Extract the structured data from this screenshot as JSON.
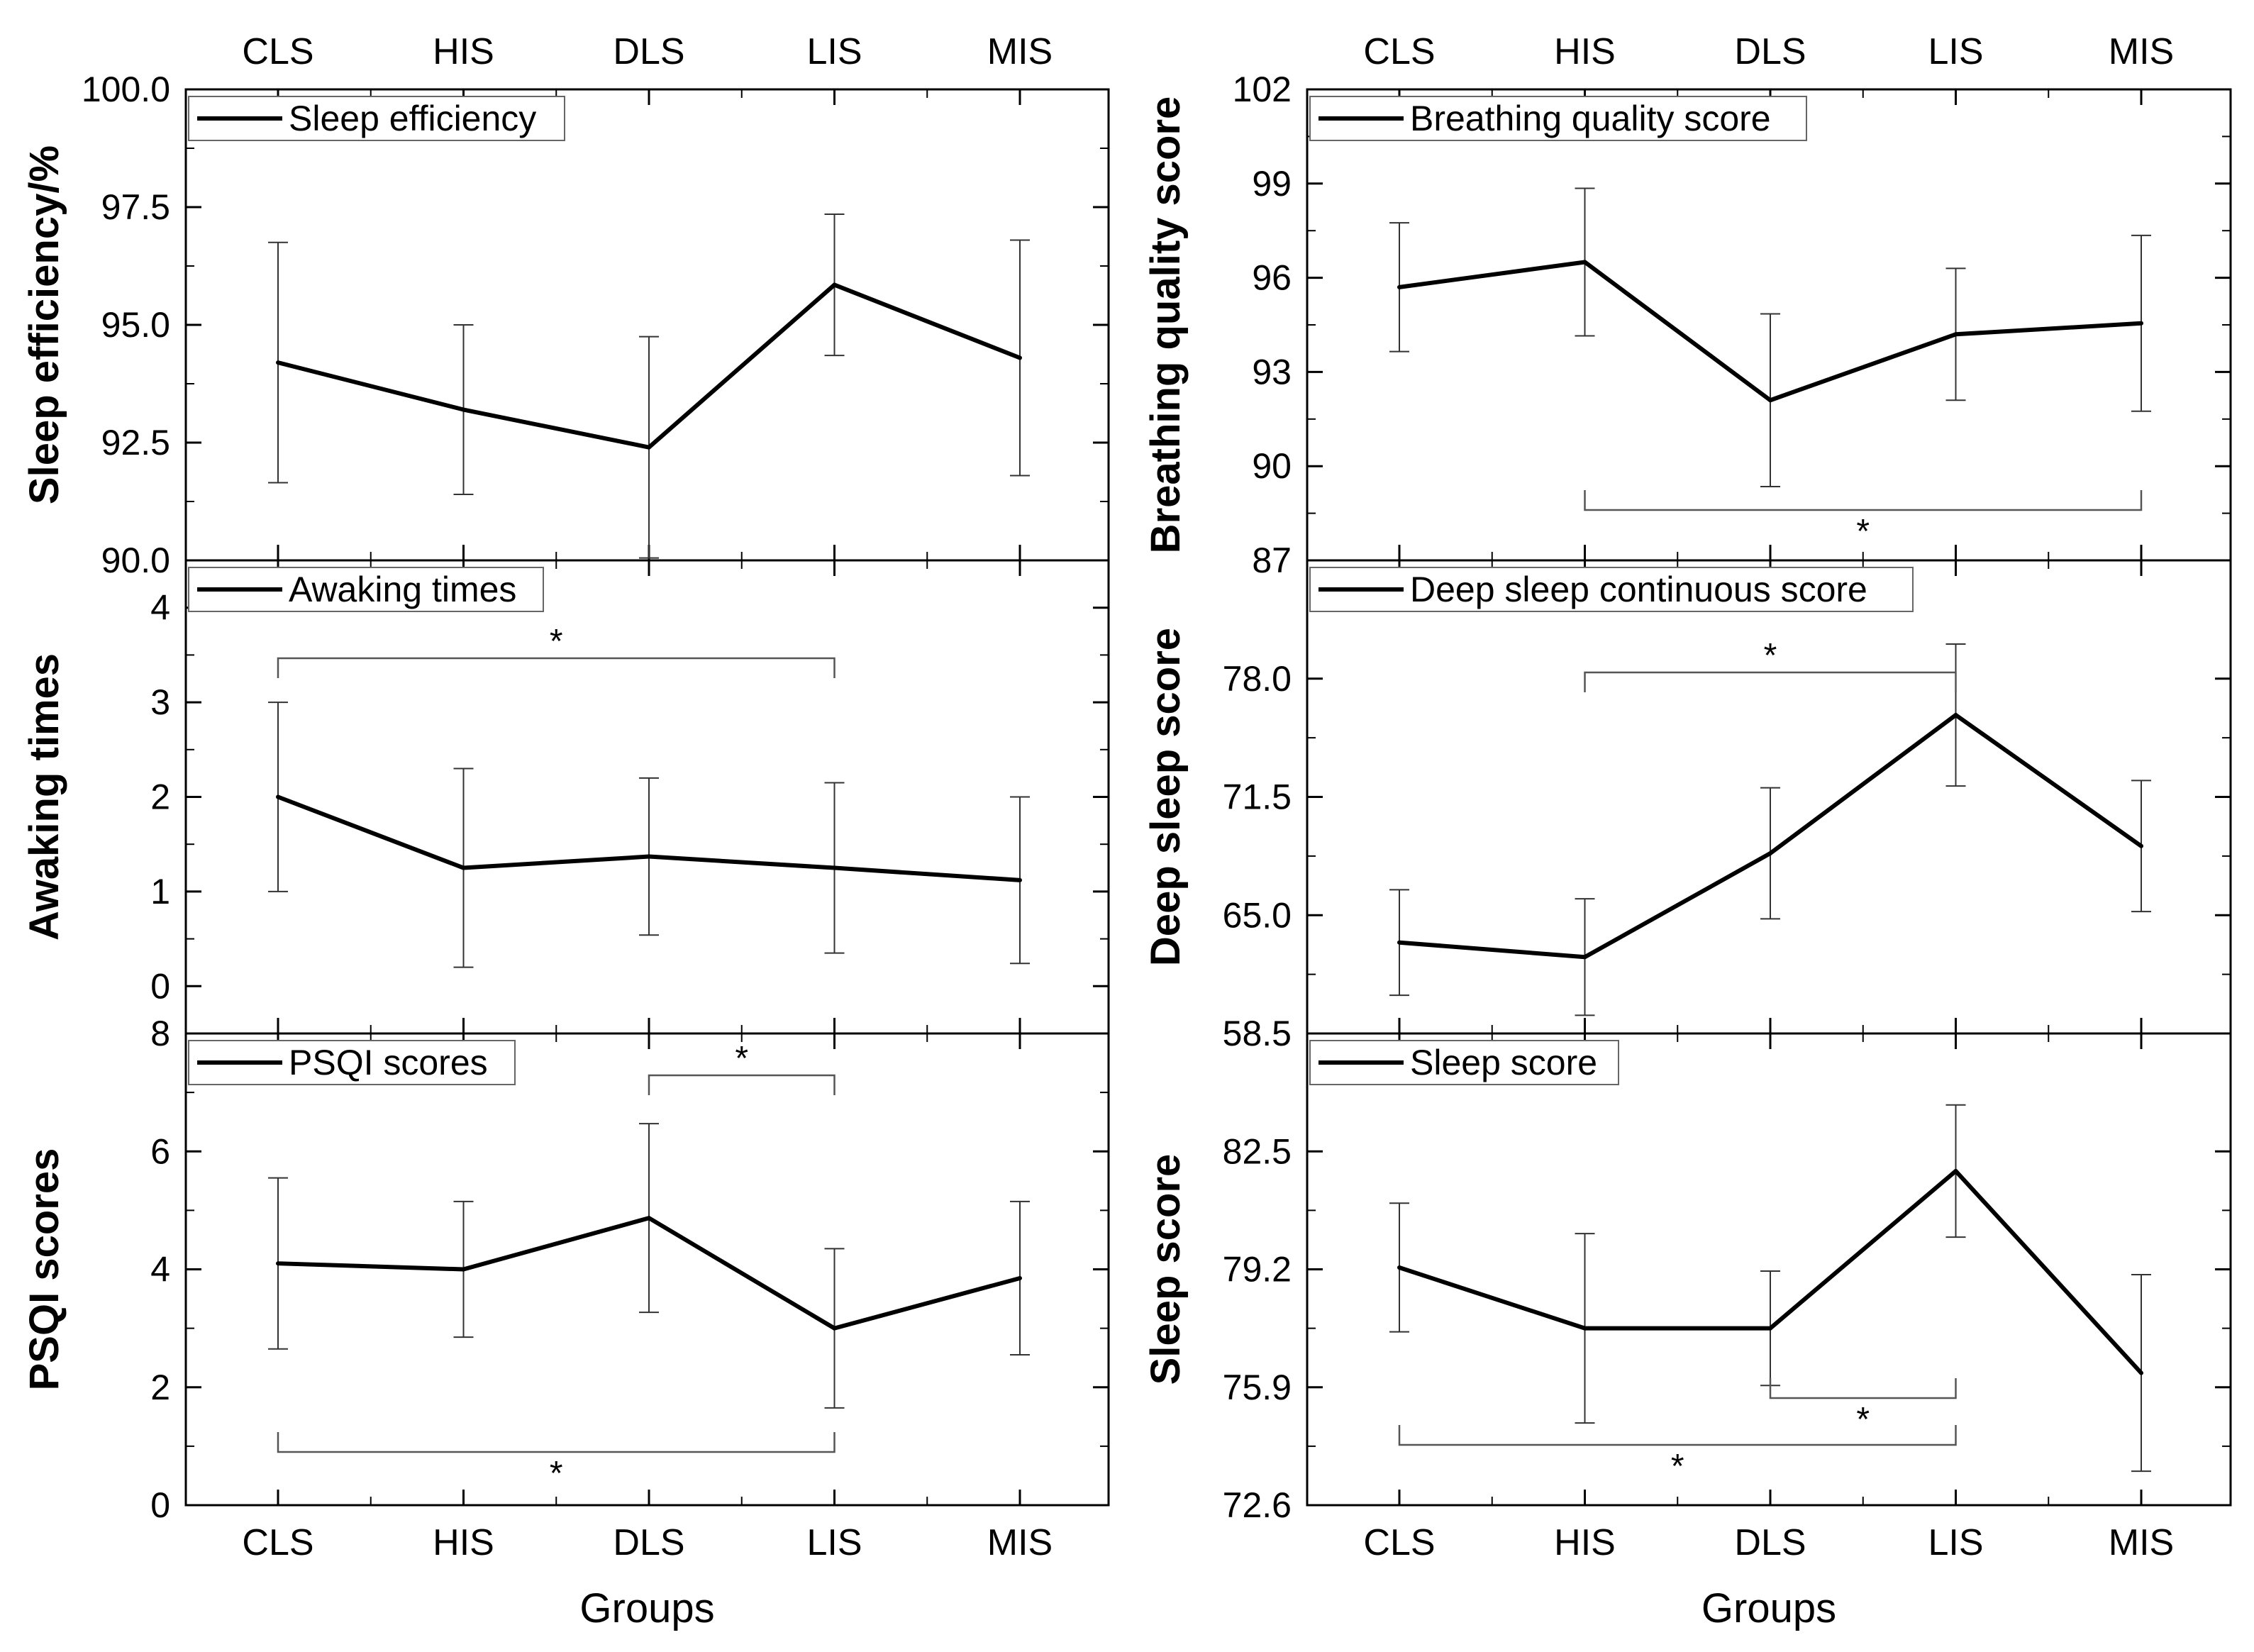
{
  "chart_data": [
    {
      "type": "line",
      "title": "",
      "legend": "Sleep efficiency",
      "ylabel": "Sleep efficiency/%",
      "xlabel": "",
      "categories": [
        "CLS",
        "HIS",
        "DLS",
        "LIS",
        "MIS"
      ],
      "values": [
        94.2,
        93.2,
        92.4,
        95.85,
        94.3
      ],
      "errors": [
        2.55,
        1.8,
        2.35,
        1.5,
        2.5
      ],
      "ylim": [
        90.0,
        100.0
      ],
      "yticks": [
        "90.0",
        "92.5",
        "95.0",
        "97.5",
        "100.0"
      ],
      "brackets": []
    },
    {
      "type": "line",
      "title": "",
      "legend": "Awaking times",
      "ylabel": "Awaking times",
      "xlabel": "",
      "categories": [
        "CLS",
        "HIS",
        "DLS",
        "LIS",
        "MIS"
      ],
      "values": [
        2.0,
        1.25,
        1.37,
        1.25,
        1.12
      ],
      "errors": [
        1.0,
        1.05,
        0.83,
        0.9,
        0.88
      ],
      "ylim": [
        -0.5,
        4.5
      ],
      "yticks": [
        "0",
        "1",
        "2",
        "3",
        "4"
      ],
      "brackets": [
        {
          "from": "CLS",
          "to": "LIS",
          "label": "*"
        }
      ]
    },
    {
      "type": "line",
      "title": "",
      "legend": "PSQI scores",
      "ylabel": "PSQI scores",
      "xlabel": "Groups",
      "categories": [
        "CLS",
        "HIS",
        "DLS",
        "LIS",
        "MIS"
      ],
      "values": [
        4.1,
        4.0,
        4.87,
        3.0,
        3.85
      ],
      "errors": [
        1.45,
        1.15,
        1.6,
        1.35,
        1.3
      ],
      "ylim": [
        0,
        8
      ],
      "yticks": [
        "0",
        "2",
        "4",
        "6",
        "8"
      ],
      "brackets": [
        {
          "from": "DLS",
          "to": "LIS",
          "label": "*"
        },
        {
          "from": "CLS",
          "to": "LIS",
          "label": "*"
        }
      ]
    },
    {
      "type": "line",
      "title": "",
      "legend": "Breathing quality score",
      "ylabel": "Breathing quality score",
      "xlabel": "",
      "categories": [
        "CLS",
        "HIS",
        "DLS",
        "LIS",
        "MIS"
      ],
      "values": [
        95.7,
        96.5,
        92.1,
        94.2,
        94.55
      ],
      "errors": [
        2.05,
        2.35,
        2.75,
        2.1,
        2.8
      ],
      "ylim": [
        87,
        102
      ],
      "yticks": [
        "87",
        "90",
        "93",
        "96",
        "99",
        "102"
      ],
      "brackets": [
        {
          "from": "HIS",
          "to": "MIS",
          "label": "*"
        }
      ]
    },
    {
      "type": "line",
      "title": "",
      "legend": "Deep sleep continuous score",
      "ylabel": "Deep sleep score",
      "xlabel": "",
      "categories": [
        "CLS",
        "HIS",
        "DLS",
        "LIS",
        "MIS"
      ],
      "values": [
        63.5,
        62.7,
        68.4,
        76.0,
        68.8
      ],
      "errors": [
        2.9,
        3.2,
        3.6,
        3.9,
        3.6
      ],
      "ylim": [
        58.5,
        84.5
      ],
      "yticks": [
        "58.5",
        "65.0",
        "71.5",
        "78.0"
      ],
      "brackets": [
        {
          "from": "HIS",
          "to": "LIS",
          "label": "*"
        }
      ]
    },
    {
      "type": "line",
      "title": "",
      "legend": "Sleep score",
      "ylabel": "Sleep score",
      "xlabel": "Groups",
      "categories": [
        "CLS",
        "HIS",
        "DLS",
        "LIS",
        "MIS"
      ],
      "values": [
        79.25,
        77.55,
        77.55,
        81.95,
        76.3
      ],
      "errors": [
        1.8,
        2.65,
        1.6,
        1.85,
        2.75
      ],
      "ylim": [
        72.6,
        85.8
      ],
      "yticks": [
        "72.6",
        "75.9",
        "79.2",
        "82.5"
      ],
      "brackets": [
        {
          "from": "DLS",
          "to": "LIS",
          "label": "*"
        },
        {
          "from": "CLS",
          "to": "LIS",
          "label": "*"
        }
      ]
    }
  ]
}
